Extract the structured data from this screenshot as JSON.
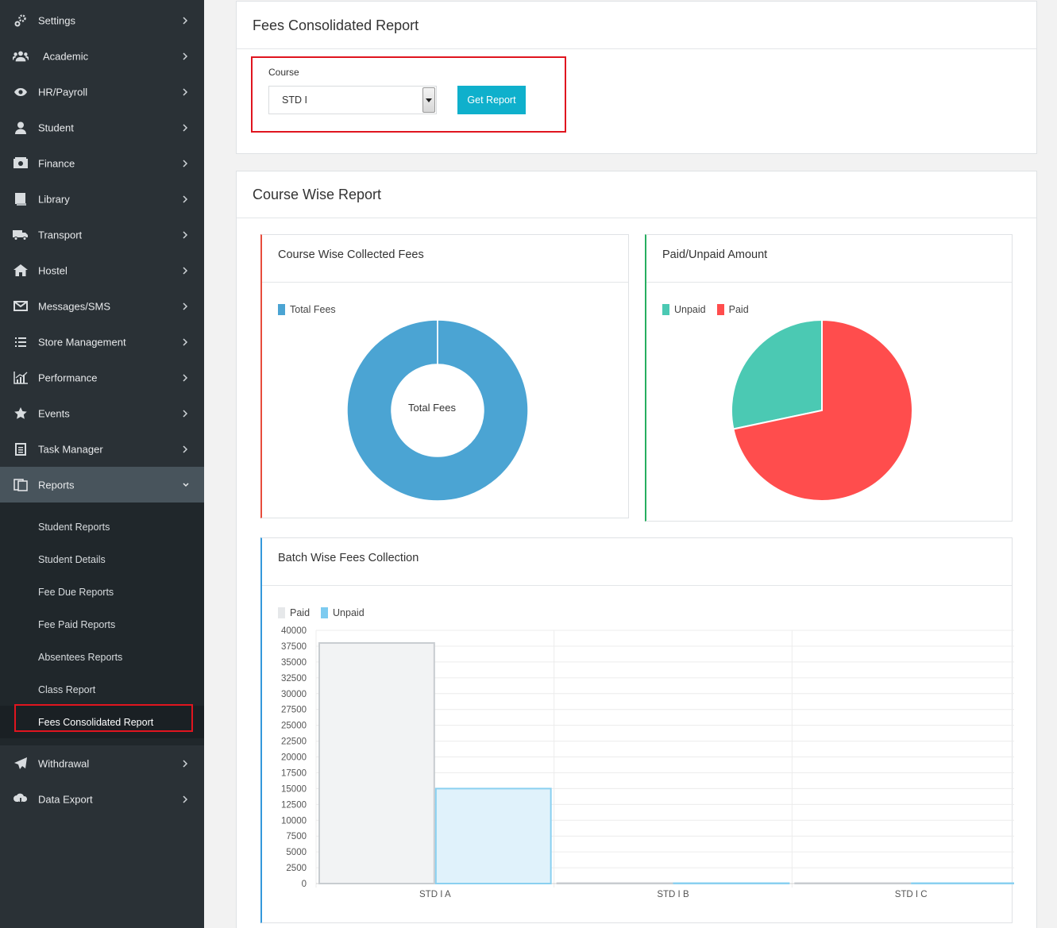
{
  "sidebar": {
    "items": [
      {
        "label": "Settings",
        "icon": "gear-icon"
      },
      {
        "label": "Academic",
        "icon": "users-icon"
      },
      {
        "label": "HR/Payroll",
        "icon": "eye-icon"
      },
      {
        "label": "Student",
        "icon": "user-icon"
      },
      {
        "label": "Finance",
        "icon": "money-icon"
      },
      {
        "label": "Library",
        "icon": "book-icon"
      },
      {
        "label": "Transport",
        "icon": "truck-icon"
      },
      {
        "label": "Hostel",
        "icon": "home-icon"
      },
      {
        "label": "Messages/SMS",
        "icon": "envelope-icon"
      },
      {
        "label": "Store Management",
        "icon": "list-icon"
      },
      {
        "label": "Performance",
        "icon": "chart-icon"
      },
      {
        "label": "Events",
        "icon": "star-icon"
      },
      {
        "label": "Task Manager",
        "icon": "task-icon"
      },
      {
        "label": "Reports",
        "icon": "reports-icon"
      }
    ],
    "reports_sub": [
      "Student Reports",
      "Student Details",
      "Fee Due Reports",
      "Fee Paid Reports",
      "Absentees Reports",
      "Class Report",
      "Fees Consolidated Report"
    ],
    "bottom_items": [
      {
        "label": "Withdrawal",
        "icon": "paper-plane-icon"
      },
      {
        "label": "Data Export",
        "icon": "cloud-download-icon"
      }
    ]
  },
  "filter_panel": {
    "title": "Fees Consolidated Report",
    "course_label": "Course",
    "course_value": "STD I",
    "button_label": "Get Report"
  },
  "report_panel": {
    "title": "Course Wise Report"
  },
  "cards": {
    "collected": {
      "title": "Course Wise Collected Fees",
      "accent": "#e74c3c"
    },
    "paid_unpaid": {
      "title": "Paid/Unpaid Amount",
      "accent": "#27ae60"
    },
    "batch": {
      "title": "Batch Wise Fees Collection",
      "accent": "#3498db"
    }
  },
  "chart_data": [
    {
      "type": "pie",
      "variant": "doughnut",
      "labels": [
        "Total Fees"
      ],
      "values": [
        100
      ],
      "colors": [
        "#4ba4d3"
      ],
      "center_text": "Total Fees",
      "legend": "top-left"
    },
    {
      "type": "pie",
      "labels": [
        "Unpaid",
        "Paid"
      ],
      "values": [
        28.3,
        71.7
      ],
      "colors": [
        "#4bc9b3",
        "#ff4d4d"
      ],
      "legend": "top-left"
    },
    {
      "type": "bar",
      "categories": [
        "STD I A",
        "STD I B",
        "STD I C"
      ],
      "series": [
        {
          "name": "Paid",
          "values": [
            38000,
            0,
            0
          ],
          "fill": "#f2f3f4",
          "stroke": "#c8ccd0"
        },
        {
          "name": "Unpaid",
          "values": [
            15000,
            0,
            0
          ],
          "fill": "#e0f2fb",
          "stroke": "#8ad0f0"
        }
      ],
      "ylim": [
        0,
        40000
      ],
      "ytick_step": 2500,
      "grid": true,
      "legend": "top-left"
    }
  ]
}
